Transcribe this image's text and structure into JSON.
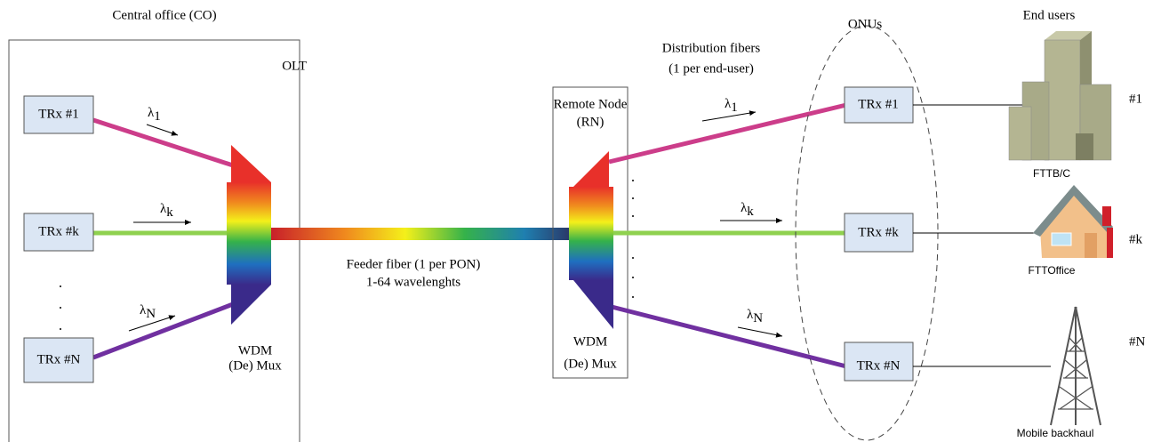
{
  "co": {
    "title": "Central office (CO)",
    "olt": "OLT",
    "transceivers": [
      "TRx #1",
      "TRx #k",
      "TRx #N"
    ],
    "wavelengths": [
      {
        "symbol": "λ",
        "index": "1"
      },
      {
        "symbol": "λ",
        "index": "k"
      },
      {
        "symbol": "λ",
        "index": "N"
      }
    ],
    "mux": [
      "WDM",
      "(De) Mux"
    ]
  },
  "feeder": [
    "Feeder fiber (1 per PON)",
    "1-64 wavelenghts"
  ],
  "remote_node": {
    "title": [
      "Remote Node",
      "(RN)"
    ],
    "mux": [
      "WDM",
      "(De) Mux"
    ]
  },
  "distribution": [
    "Distribution fibers",
    "(1 per end-user)"
  ],
  "onus": {
    "title": "ONUs",
    "transceivers": [
      "TRx #1",
      "TRx #k",
      "TRx #N"
    ],
    "wavelengths": [
      {
        "symbol": "λ",
        "index": "1"
      },
      {
        "symbol": "λ",
        "index": "k"
      },
      {
        "symbol": "λ",
        "index": "N"
      }
    ]
  },
  "end_users": {
    "title": "End users",
    "ids": [
      "#1",
      "#k",
      "#N"
    ],
    "labels": [
      "FTTB/C",
      "FTTOffice",
      "Mobile backhaul"
    ]
  }
}
